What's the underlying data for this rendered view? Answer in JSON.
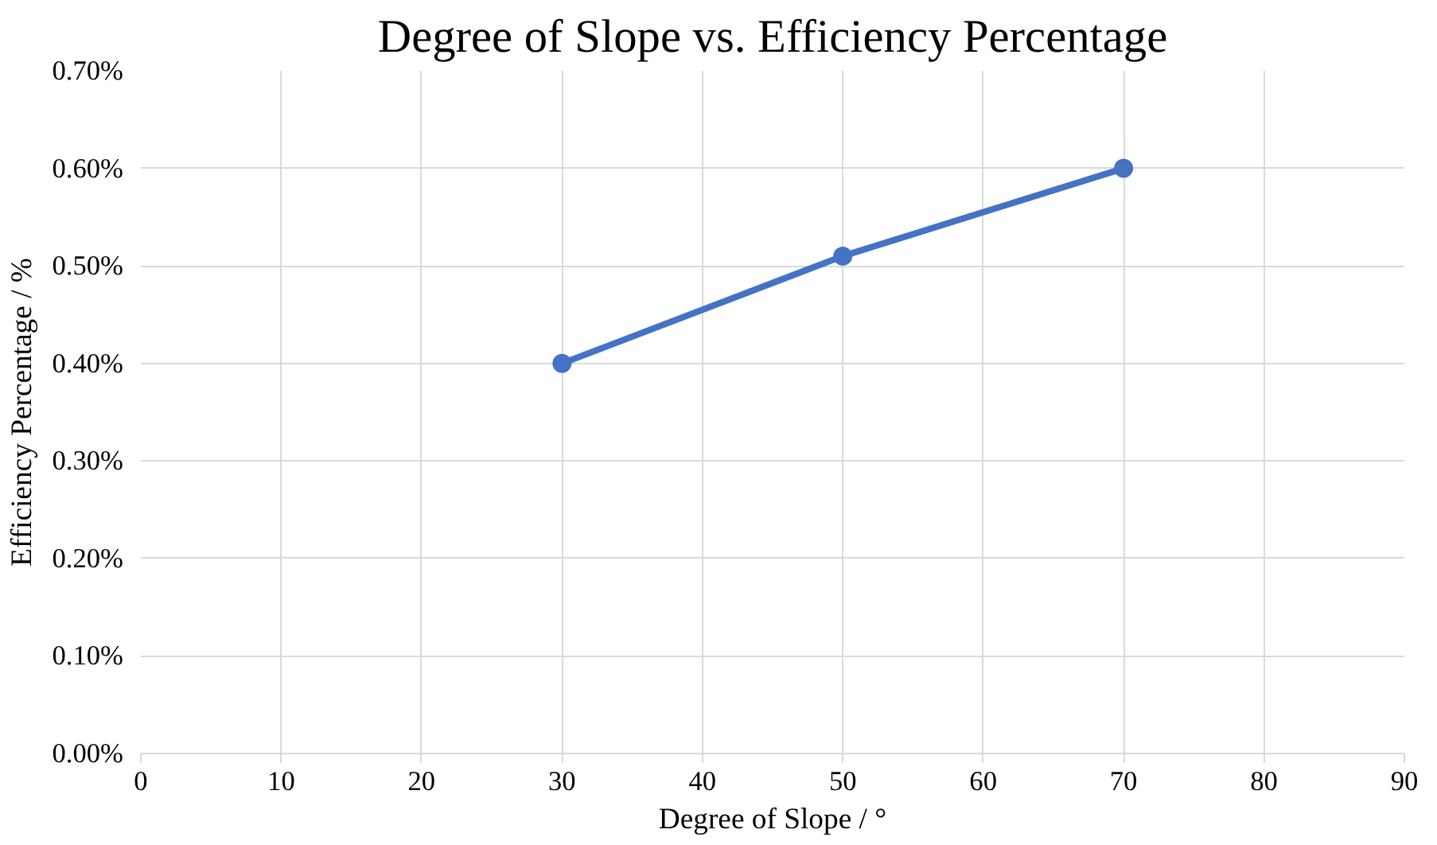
{
  "chart_data": {
    "type": "line",
    "title": "Degree of Slope vs. Efficiency Percentage",
    "xlabel": "Degree of Slope / °",
    "ylabel": "Efficiency Percentage / %",
    "x": [
      30,
      50,
      70
    ],
    "series": [
      {
        "color": "#4472c4",
        "values": [
          0.4,
          0.51,
          0.6
        ]
      }
    ],
    "xlim": [
      0,
      90
    ],
    "xticks": [
      0,
      10,
      20,
      30,
      40,
      50,
      60,
      70,
      80,
      90
    ],
    "ylim": [
      0,
      0.7
    ],
    "yticks": [
      {
        "value": 0,
        "label": "0.00%"
      },
      {
        "value": 0.1,
        "label": "0.10%"
      },
      {
        "value": 0.2,
        "label": "0.20%"
      },
      {
        "value": 0.3,
        "label": "0.30%"
      },
      {
        "value": 0.4,
        "label": "0.40%"
      },
      {
        "value": 0.5,
        "label": "0.50%"
      },
      {
        "value": 0.6,
        "label": "0.60%"
      },
      {
        "value": 0.7,
        "label": "0.70%"
      }
    ],
    "grid": true,
    "marker": "circle",
    "line_style": "solid"
  }
}
